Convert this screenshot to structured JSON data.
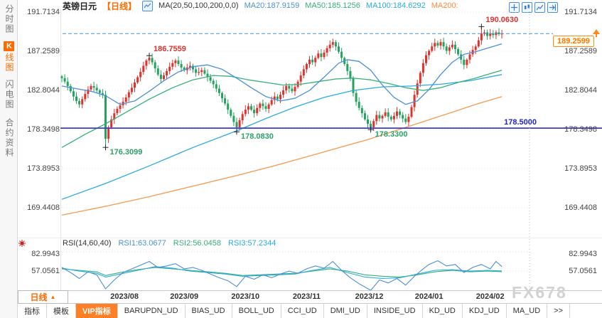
{
  "sidebar": {
    "items": [
      {
        "id": "time-chart",
        "label": "分时图",
        "active": false
      },
      {
        "id": "kline-chart",
        "prefix": "K",
        "label": "线图",
        "active": true
      },
      {
        "id": "flash-chart",
        "label": "闪电图",
        "active": false
      },
      {
        "id": "contract-info",
        "label": "合约资料",
        "active": false
      }
    ]
  },
  "header": {
    "symbol": "英镑日元",
    "period": "【日线】",
    "ma_title": "MA(20,50,100,200,0,0)",
    "ma20": "MA20:187.9159",
    "ma50": "MA50:185.1256",
    "ma100": "MA100:184.6292",
    "ma200": "MA200:"
  },
  "toolbar_icons": [
    {
      "name": "crosshair-icon"
    },
    {
      "name": "candle-chart-icon"
    },
    {
      "name": "line-chart-icon"
    },
    {
      "name": "export-icon"
    }
  ],
  "colors": {
    "up": "#e0312d",
    "down": "#23a35e",
    "ma20": "#4a90d9",
    "ma50": "#35b07a",
    "ma100": "#29abe2",
    "ma200": "#f59a4c",
    "support": "#3c3cc8",
    "dashed": "#4a90d9",
    "accent": "#ff6a00"
  },
  "price_axis": {
    "labels": [
      "191.7134",
      "187.2589",
      "182.8044",
      "178.3498",
      "173.8953",
      "169.4408"
    ],
    "values": [
      191.7134,
      187.2589,
      182.8044,
      178.3498,
      173.8953,
      169.4408
    ]
  },
  "support_line": {
    "label": "178.5000",
    "value": 178.5
  },
  "current_price": {
    "label": "189.2599",
    "value": 189.2599
  },
  "rsi_header": {
    "title": "RSI(14,60,40)",
    "r1": "RSI1:63.0677",
    "r2": "RSI2:56.0458",
    "r3": "RSI3:57.2344"
  },
  "rsi_axis": {
    "labels": [
      "82.9943",
      "57.0561"
    ],
    "values": [
      82.9943,
      57.0561
    ]
  },
  "xaxis": {
    "period_label": "日线",
    "arrow": "▲",
    "ticks": [
      {
        "label": "2023/08",
        "i": 21.5
      },
      {
        "label": "2023/09",
        "i": 42
      },
      {
        "label": "2023/10",
        "i": 63
      },
      {
        "label": "2023/11",
        "i": 84
      },
      {
        "label": "2023/12",
        "i": 105.5
      },
      {
        "label": "2024/01",
        "i": 126
      },
      {
        "label": "2024/02",
        "i": 147
      }
    ]
  },
  "watermark": "FX678",
  "bottom_tabs": [
    {
      "label": "指标",
      "active": false
    },
    {
      "label": "模板",
      "active": false
    },
    {
      "label": "VIP指标",
      "active": true
    },
    {
      "label": "BARUPDN_UD",
      "active": false
    },
    {
      "label": "BIAS_UD",
      "active": false
    },
    {
      "label": "BOLL_UD",
      "active": false
    },
    {
      "label": "CCI_UD",
      "active": false
    },
    {
      "label": "DMI_UD",
      "active": false
    },
    {
      "label": "INSIDE_UD",
      "active": false
    },
    {
      "label": "KD_UD",
      "active": false
    },
    {
      "label": "KDJ_UD",
      "active": false
    },
    {
      "label": "MA_UD",
      "active": false
    },
    {
      "label": ">>",
      "active": false
    }
  ],
  "chart_data": {
    "type": "candlestick",
    "title": "英镑日元 日线 (GBP/JPY daily)",
    "ylim": [
      169.4408,
      191.7134
    ],
    "y_ticks": [
      191.7134,
      187.2589,
      182.8044,
      178.3498,
      173.8953,
      169.4408
    ],
    "grid": true,
    "first_open": 184.4,
    "closes": [
      184.2,
      183.8,
      183.3,
      182.7,
      182.1,
      181.6,
      181.2,
      181.8,
      182.4,
      182.9,
      183.3,
      183.1,
      182.8,
      182.5,
      182.3,
      177.3,
      178.6,
      179.5,
      180.2,
      180.7,
      181.1,
      181.5,
      182.0,
      182.6,
      183.1,
      183.7,
      184.3,
      184.9,
      185.6,
      186.2,
      186.5,
      186.0,
      185.3,
      184.6,
      184.1,
      184.5,
      185.0,
      185.5,
      185.9,
      186.2,
      185.8,
      185.4,
      185.1,
      185.4,
      185.6,
      185.2,
      184.8,
      184.9,
      185.1,
      184.7,
      184.3,
      183.9,
      183.5,
      183.0,
      182.5,
      181.9,
      181.3,
      180.6,
      179.9,
      179.2,
      178.6,
      179.4,
      180.1,
      180.6,
      181.0,
      180.6,
      180.2,
      180.8,
      181.3,
      181.0,
      180.7,
      181.2,
      181.7,
      182.1,
      181.8,
      182.3,
      182.8,
      183.3,
      183.0,
      182.7,
      183.2,
      183.8,
      184.5,
      185.2,
      185.8,
      186.3,
      186.0,
      186.5,
      187.0,
      186.6,
      187.1,
      187.6,
      188.0,
      188.3,
      187.8,
      187.2,
      186.5,
      185.8,
      185.0,
      184.2,
      182.5,
      181.5,
      180.8,
      180.2,
      179.5,
      179.0,
      178.6,
      179.3,
      180.0,
      179.6,
      179.9,
      180.3,
      179.8,
      179.5,
      179.9,
      180.4,
      180.0,
      179.6,
      179.2,
      179.8,
      180.9,
      182.3,
      183.6,
      184.8,
      185.9,
      186.8,
      187.3,
      187.8,
      188.2,
      187.9,
      188.3,
      187.8,
      187.3,
      187.7,
      188.0,
      187.5,
      186.9,
      186.3,
      185.7,
      186.3,
      186.9,
      187.4,
      187.8,
      188.5,
      189.3,
      189.4,
      189.0,
      189.3,
      189.1,
      189.4,
      189.2,
      189.26
    ],
    "key_extremes": {
      "15": {
        "low": 176.3099
      },
      "30": {
        "high": 186.7559
      },
      "60": {
        "low": 178.083
      },
      "106": {
        "low": 178.33
      },
      "138": {
        "low": 185.2
      },
      "144": {
        "high": 190.063
      }
    },
    "support_line": 178.5,
    "last_price": 189.2599,
    "ma_series": [
      {
        "name": "MA200",
        "color": "#f59a4c",
        "points": [
          [
            0,
            168.6
          ],
          [
            15,
            169.6
          ],
          [
            30,
            170.7
          ],
          [
            45,
            171.9
          ],
          [
            60,
            173.1
          ],
          [
            75,
            174.4
          ],
          [
            90,
            175.8
          ],
          [
            105,
            177.2
          ],
          [
            120,
            178.8
          ],
          [
            132,
            180.1
          ],
          [
            142,
            181.2
          ],
          [
            151,
            182.1
          ]
        ]
      },
      {
        "name": "MA100",
        "color": "#29abe2",
        "points": [
          [
            0,
            170.4
          ],
          [
            15,
            172.2
          ],
          [
            30,
            174.2
          ],
          [
            45,
            176.3
          ],
          [
            60,
            178.2
          ],
          [
            70,
            179.6
          ],
          [
            80,
            180.9
          ],
          [
            90,
            182.0
          ],
          [
            100,
            182.8
          ],
          [
            110,
            183.2
          ],
          [
            120,
            183.3
          ],
          [
            130,
            183.5
          ],
          [
            140,
            183.9
          ],
          [
            151,
            184.6
          ]
        ]
      },
      {
        "name": "MA50",
        "color": "#35b07a",
        "points": [
          [
            0,
            176.3
          ],
          [
            8,
            177.8
          ],
          [
            15,
            179.0
          ],
          [
            22,
            180.3
          ],
          [
            30,
            181.8
          ],
          [
            38,
            183.1
          ],
          [
            45,
            184.0
          ],
          [
            52,
            184.5
          ],
          [
            58,
            184.4
          ],
          [
            64,
            184.0
          ],
          [
            70,
            183.7
          ],
          [
            76,
            183.4
          ],
          [
            82,
            183.5
          ],
          [
            88,
            183.8
          ],
          [
            94,
            184.1
          ],
          [
            100,
            184.2
          ],
          [
            106,
            184.0
          ],
          [
            112,
            183.6
          ],
          [
            118,
            183.1
          ],
          [
            124,
            182.8
          ],
          [
            130,
            183.1
          ],
          [
            136,
            183.7
          ],
          [
            142,
            184.2
          ],
          [
            146,
            184.6
          ],
          [
            151,
            185.1
          ]
        ]
      },
      {
        "name": "MA20",
        "color": "#4a90d9",
        "points": [
          [
            0,
            183.3
          ],
          [
            5,
            183.0
          ],
          [
            10,
            182.7
          ],
          [
            15,
            182.2
          ],
          [
            20,
            181.2
          ],
          [
            25,
            181.6
          ],
          [
            30,
            182.7
          ],
          [
            35,
            183.9
          ],
          [
            40,
            184.9
          ],
          [
            45,
            185.5
          ],
          [
            50,
            185.7
          ],
          [
            55,
            185.2
          ],
          [
            60,
            184.2
          ],
          [
            65,
            183.1
          ],
          [
            70,
            182.1
          ],
          [
            75,
            181.6
          ],
          [
            80,
            181.9
          ],
          [
            85,
            182.8
          ],
          [
            90,
            184.3
          ],
          [
            95,
            185.9
          ],
          [
            98,
            186.3
          ],
          [
            102,
            186.1
          ],
          [
            106,
            185.1
          ],
          [
            110,
            183.4
          ],
          [
            114,
            182.0
          ],
          [
            118,
            181.2
          ],
          [
            122,
            181.6
          ],
          [
            126,
            182.9
          ],
          [
            130,
            184.6
          ],
          [
            134,
            186.0
          ],
          [
            138,
            186.9
          ],
          [
            142,
            187.2
          ],
          [
            146,
            187.6
          ],
          [
            151,
            188.1
          ]
        ]
      }
    ],
    "annotations": [
      {
        "text": "186.7559",
        "price": 186.7559,
        "i": 30,
        "side": "high",
        "color": "#e0312d"
      },
      {
        "text": "176.3099",
        "price": 176.3099,
        "i": 15,
        "side": "low",
        "color": "#2ba169"
      },
      {
        "text": "178.0830",
        "price": 178.083,
        "i": 60,
        "side": "low",
        "color": "#2ba169"
      },
      {
        "text": "178.3300",
        "price": 178.33,
        "i": 106,
        "side": "low",
        "color": "#2ba169"
      },
      {
        "text": "190.0630",
        "price": 190.063,
        "i": 144,
        "side": "high",
        "color": "#e0312d"
      }
    ],
    "rsi_panel": {
      "ticks": [
        82.9943,
        57.0561
      ],
      "series": [
        {
          "name": "RSI2",
          "color": "#35b07a",
          "points": [
            [
              0,
              60
            ],
            [
              6,
              58
            ],
            [
              12,
              56
            ],
            [
              15,
              51
            ],
            [
              20,
              55
            ],
            [
              26,
              59
            ],
            [
              32,
              62
            ],
            [
              38,
              60
            ],
            [
              44,
              58
            ],
            [
              50,
              56
            ],
            [
              56,
              54
            ],
            [
              62,
              51
            ],
            [
              68,
              52
            ],
            [
              74,
              53
            ],
            [
              80,
              54
            ],
            [
              86,
              57
            ],
            [
              92,
              60
            ],
            [
              98,
              57
            ],
            [
              104,
              52
            ],
            [
              110,
              50
            ],
            [
              116,
              49
            ],
            [
              122,
              52
            ],
            [
              128,
              56
            ],
            [
              134,
              58
            ],
            [
              140,
              56
            ],
            [
              146,
              57
            ],
            [
              151,
              56.05
            ]
          ]
        },
        {
          "name": "RSI3",
          "color": "#29abe2",
          "points": [
            [
              0,
              61
            ],
            [
              6,
              57
            ],
            [
              12,
              54
            ],
            [
              15,
              49
            ],
            [
              20,
              53
            ],
            [
              26,
              58
            ],
            [
              32,
              63
            ],
            [
              38,
              61
            ],
            [
              44,
              57
            ],
            [
              50,
              55
            ],
            [
              56,
              53
            ],
            [
              62,
              50
            ],
            [
              68,
              51
            ],
            [
              74,
              52
            ],
            [
              80,
              53
            ],
            [
              86,
              58
            ],
            [
              92,
              62
            ],
            [
              98,
              55
            ],
            [
              104,
              49
            ],
            [
              110,
              47
            ],
            [
              116,
              48
            ],
            [
              122,
              53
            ],
            [
              128,
              58
            ],
            [
              134,
              59
            ],
            [
              140,
              57
            ],
            [
              146,
              58
            ],
            [
              151,
              57.23
            ]
          ]
        },
        {
          "name": "RSI1",
          "color": "#4a90d9",
          "points": [
            [
              0,
              62
            ],
            [
              3,
              55
            ],
            [
              6,
              47
            ],
            [
              9,
              56
            ],
            [
              12,
              52
            ],
            [
              15,
              33
            ],
            [
              18,
              45
            ],
            [
              21,
              55
            ],
            [
              24,
              60
            ],
            [
              27,
              65
            ],
            [
              30,
              70
            ],
            [
              33,
              62
            ],
            [
              36,
              64
            ],
            [
              39,
              67
            ],
            [
              42,
              60
            ],
            [
              45,
              62
            ],
            [
              48,
              58
            ],
            [
              51,
              53
            ],
            [
              54,
              48
            ],
            [
              57,
              44
            ],
            [
              60,
              36
            ],
            [
              63,
              50
            ],
            [
              66,
              46
            ],
            [
              69,
              52
            ],
            [
              72,
              48
            ],
            [
              75,
              53
            ],
            [
              78,
              57
            ],
            [
              81,
              54
            ],
            [
              84,
              60
            ],
            [
              87,
              64
            ],
            [
              90,
              61
            ],
            [
              93,
              70
            ],
            [
              96,
              58
            ],
            [
              99,
              48
            ],
            [
              102,
              40
            ],
            [
              106,
              31
            ],
            [
              109,
              45
            ],
            [
              112,
              41
            ],
            [
              115,
              47
            ],
            [
              118,
              38
            ],
            [
              121,
              50
            ],
            [
              124,
              60
            ],
            [
              126,
              66
            ],
            [
              129,
              71
            ],
            [
              132,
              64
            ],
            [
              135,
              66
            ],
            [
              138,
              55
            ],
            [
              141,
              62
            ],
            [
              144,
              66
            ],
            [
              147,
              60
            ],
            [
              149,
              70
            ],
            [
              151,
              63.07
            ]
          ]
        }
      ]
    }
  }
}
